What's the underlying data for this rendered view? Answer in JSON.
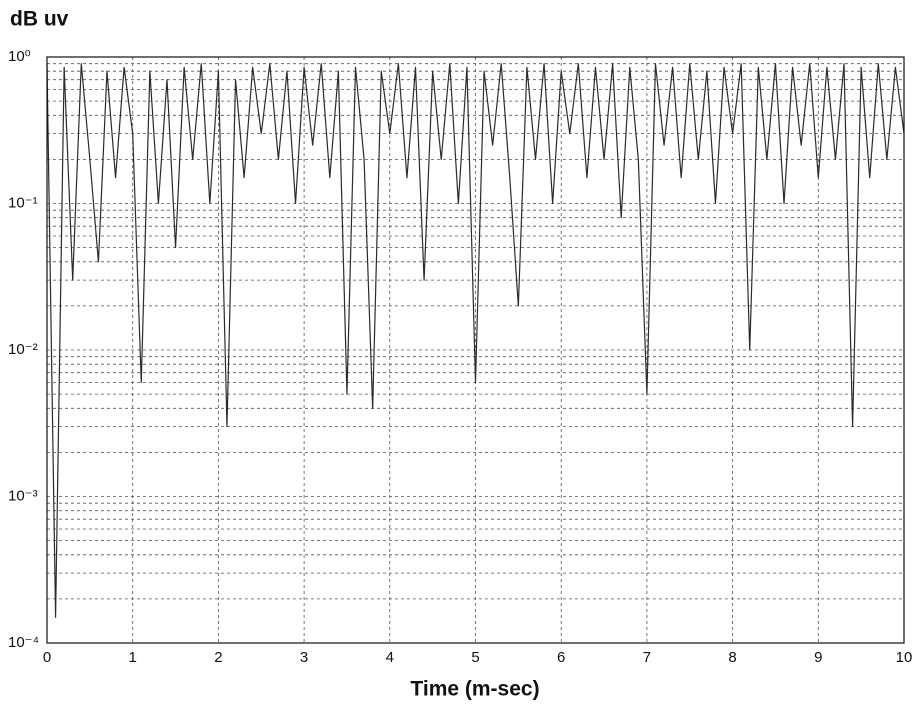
{
  "chart_data": {
    "type": "line",
    "title": "dB uv",
    "x_label": "Time (m-sec)",
    "color": "#2b2b2b",
    "log_y": true,
    "grid": true,
    "minor_grid": true,
    "xlim": [
      0,
      10
    ],
    "xticks": [
      0,
      1,
      2,
      3,
      4,
      5,
      6,
      7,
      8,
      9,
      10
    ],
    "ylim": [
      0.0001,
      1
    ],
    "yticks": [
      {
        "value": 0.0001,
        "label": "10⁻⁴"
      },
      {
        "value": 0.001,
        "label": "10⁻³"
      },
      {
        "value": 0.01,
        "label": "10⁻²"
      },
      {
        "value": 0.1,
        "label": "10⁻¹"
      },
      {
        "value": 1,
        "label": "10⁰"
      }
    ],
    "x": [
      0.0,
      0.1,
      0.2,
      0.3,
      0.4,
      0.5,
      0.6,
      0.7,
      0.8,
      0.9,
      1.0,
      1.1,
      1.2,
      1.3,
      1.4,
      1.5,
      1.6,
      1.7,
      1.8,
      1.9,
      2.0,
      2.1,
      2.2,
      2.3,
      2.4,
      2.5,
      2.6,
      2.7,
      2.8,
      2.9,
      3.0,
      3.1,
      3.2,
      3.3,
      3.4,
      3.5,
      3.6,
      3.7,
      3.8,
      3.9,
      4.0,
      4.1,
      4.2,
      4.3,
      4.4,
      4.5,
      4.6,
      4.7,
      4.8,
      4.9,
      5.0,
      5.1,
      5.2,
      5.3,
      5.4,
      5.5,
      5.6,
      5.7,
      5.8,
      5.9,
      6.0,
      6.1,
      6.2,
      6.3,
      6.4,
      6.5,
      6.6,
      6.7,
      6.8,
      6.9,
      7.0,
      7.1,
      7.2,
      7.3,
      7.4,
      7.5,
      7.6,
      7.7,
      7.8,
      7.9,
      8.0,
      8.1,
      8.2,
      8.3,
      8.4,
      8.5,
      8.6,
      8.7,
      8.8,
      8.9,
      9.0,
      9.1,
      9.2,
      9.3,
      9.4,
      9.5,
      9.6,
      9.7,
      9.8,
      9.9,
      10.0
    ],
    "values": [
      0.9,
      0.00015,
      0.85,
      0.03,
      0.9,
      0.2,
      0.04,
      0.8,
      0.15,
      0.85,
      0.3,
      0.006,
      0.8,
      0.1,
      0.7,
      0.05,
      0.85,
      0.2,
      0.9,
      0.1,
      0.8,
      0.003,
      0.7,
      0.15,
      0.85,
      0.3,
      0.9,
      0.2,
      0.8,
      0.1,
      0.85,
      0.25,
      0.9,
      0.15,
      0.8,
      0.005,
      0.85,
      0.2,
      0.004,
      0.8,
      0.3,
      0.9,
      0.15,
      0.85,
      0.03,
      0.8,
      0.2,
      0.9,
      0.1,
      0.85,
      0.006,
      0.8,
      0.25,
      0.9,
      0.15,
      0.02,
      0.85,
      0.2,
      0.9,
      0.1,
      0.8,
      0.3,
      0.9,
      0.15,
      0.85,
      0.2,
      0.9,
      0.08,
      0.85,
      0.2,
      0.005,
      0.9,
      0.25,
      0.85,
      0.15,
      0.9,
      0.2,
      0.8,
      0.1,
      0.85,
      0.3,
      0.9,
      0.01,
      0.85,
      0.2,
      0.9,
      0.1,
      0.85,
      0.25,
      0.9,
      0.15,
      0.85,
      0.2,
      0.9,
      0.003,
      0.85,
      0.15,
      0.9,
      0.2,
      0.85,
      0.3
    ]
  }
}
